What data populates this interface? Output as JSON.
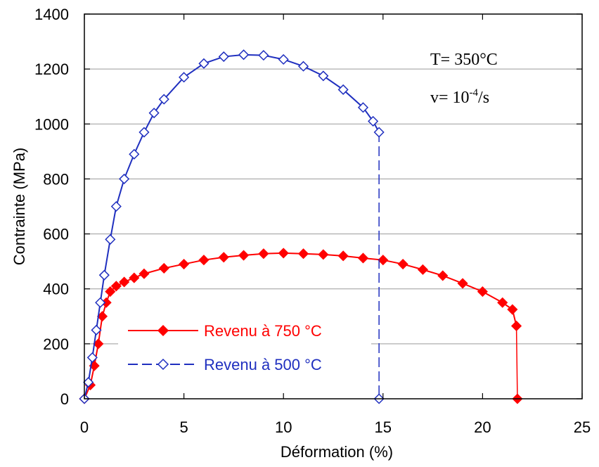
{
  "chart_data": {
    "type": "scatter",
    "xlabel": "Déformation (%)",
    "ylabel": "Contrainte (MPa)",
    "xlim": [
      0,
      25
    ],
    "ylim": [
      0,
      1400
    ],
    "x_ticks": [
      0,
      5,
      10,
      15,
      20,
      25
    ],
    "y_ticks": [
      0,
      200,
      400,
      600,
      800,
      1000,
      1200,
      1400
    ],
    "grid": "horizontal",
    "legend_position": "bottom-left",
    "annotations": {
      "temperature": "T= 350°C",
      "rate_prefix": "v= 10",
      "rate_exponent": "-4",
      "rate_suffix": "/s"
    },
    "series": [
      {
        "name": "Revenu à 750 °C",
        "color": "#ff0000",
        "marker": "filled-diamond",
        "x": [
          0,
          0.3,
          0.5,
          0.7,
          0.9,
          1.1,
          1.3,
          1.6,
          2,
          2.5,
          3,
          4,
          5,
          6,
          7,
          8,
          9,
          10,
          11,
          12,
          13,
          14,
          15,
          16,
          17,
          18,
          19,
          20,
          21,
          21.5,
          21.7,
          21.75
        ],
        "y": [
          0,
          50,
          120,
          200,
          300,
          350,
          390,
          410,
          425,
          440,
          455,
          475,
          490,
          505,
          515,
          522,
          528,
          530,
          528,
          525,
          520,
          512,
          505,
          490,
          470,
          448,
          420,
          390,
          350,
          325,
          265,
          0
        ]
      },
      {
        "name": "Revenu à 500 °C",
        "color": "#1f2fbf",
        "marker": "open-diamond",
        "x": [
          0,
          0.2,
          0.4,
          0.6,
          0.8,
          1.0,
          1.3,
          1.6,
          2,
          2.5,
          3,
          3.5,
          4,
          5,
          6,
          7,
          8,
          9,
          10,
          11,
          12,
          13,
          14,
          14.5,
          14.8,
          14.8
        ],
        "y": [
          0,
          60,
          150,
          250,
          350,
          450,
          580,
          700,
          800,
          890,
          970,
          1040,
          1090,
          1170,
          1220,
          1245,
          1252,
          1250,
          1235,
          1210,
          1175,
          1125,
          1060,
          1010,
          970,
          0
        ]
      }
    ]
  }
}
